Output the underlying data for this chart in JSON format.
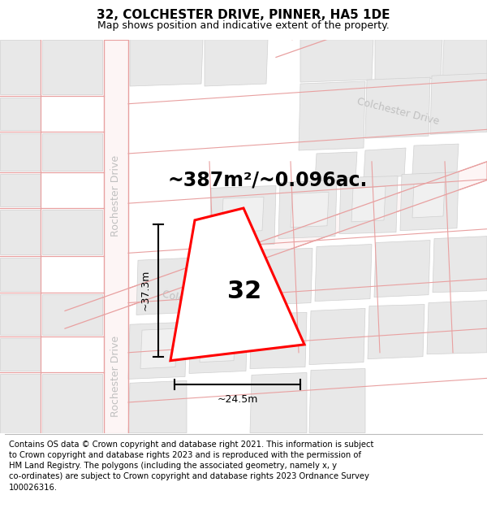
{
  "title": "32, COLCHESTER DRIVE, PINNER, HA5 1DE",
  "subtitle": "Map shows position and indicative extent of the property.",
  "area_text": "~387m²/~0.096ac.",
  "dim_width": "~24.5m",
  "dim_height": "~37.3m",
  "property_number": "32",
  "footer": "Contains OS data © Crown copyright and database right 2021. This information is subject to Crown copyright and database rights 2023 and is reproduced with the permission of HM Land Registry. The polygons (including the associated geometry, namely x, y co-ordinates) are subject to Crown copyright and database rights 2023 Ordnance Survey 100026316.",
  "bg_color": "#ffffff",
  "road_line_color": "#e8a0a0",
  "road_fill_color": "#f5e8e8",
  "block_fill": "#e8e8e8",
  "block_edge": "#d0d0d0",
  "property_fill": "#ffffff",
  "property_border": "#ff0000",
  "label_gray": "#c0c0c0",
  "dim_color": "#1a1a1a",
  "title_fontsize": 11,
  "subtitle_fontsize": 9,
  "area_fontsize": 17,
  "number_fontsize": 22,
  "road_label_fontsize": 9,
  "footer_fontsize": 7.2
}
